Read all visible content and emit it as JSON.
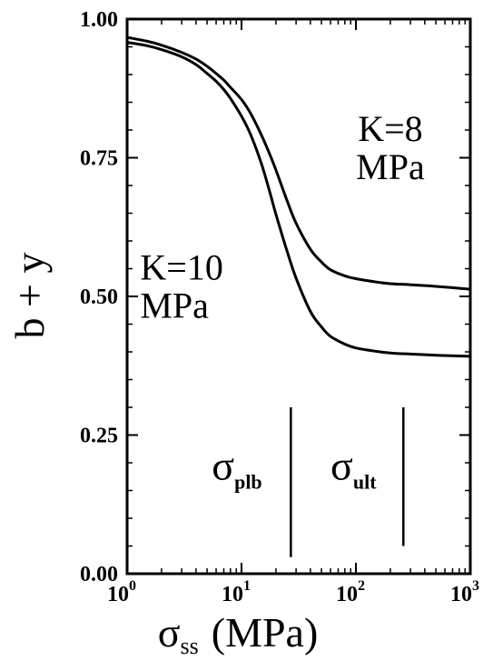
{
  "chart_data": {
    "type": "line",
    "title": "",
    "xlabel": {
      "main": "σ",
      "sub": "ss",
      "unit": "(MPa)"
    },
    "ylabel": "b + y",
    "xscale": "log",
    "xlim": [
      1,
      1000
    ],
    "ylim": [
      0.0,
      1.0
    ],
    "grid": false,
    "legend": "none",
    "x_ticks": [
      {
        "base": "10",
        "exp": "0",
        "value": 1
      },
      {
        "base": "10",
        "exp": "1",
        "value": 10
      },
      {
        "base": "10",
        "exp": "2",
        "value": 100
      },
      {
        "base": "10",
        "exp": "3",
        "value": 1000
      }
    ],
    "y_ticks": [
      {
        "label": "0.00",
        "value": 0.0
      },
      {
        "label": "0.25",
        "value": 0.25
      },
      {
        "label": "0.50",
        "value": 0.5
      },
      {
        "label": "0.75",
        "value": 0.75
      },
      {
        "label": "1.00",
        "value": 1.0
      }
    ],
    "series": [
      {
        "x": [
          1,
          1.5,
          2,
          3,
          4,
          5,
          6,
          7,
          8,
          10,
          12,
          15,
          18,
          20,
          25,
          30,
          40,
          50,
          60,
          80,
          100,
          150,
          200,
          300,
          500,
          1000
        ],
        "y": [
          0.967,
          0.96,
          0.953,
          0.94,
          0.928,
          0.915,
          0.902,
          0.89,
          0.877,
          0.855,
          0.83,
          0.79,
          0.752,
          0.728,
          0.673,
          0.632,
          0.585,
          0.562,
          0.548,
          0.537,
          0.532,
          0.526,
          0.523,
          0.521,
          0.518,
          0.513
        ]
      },
      {
        "x": [
          1,
          1.5,
          2,
          3,
          4,
          5,
          6,
          7,
          8,
          10,
          12,
          15,
          18,
          20,
          25,
          30,
          40,
          50,
          60,
          80,
          100,
          150,
          200,
          300,
          500,
          1000
        ],
        "y": [
          0.958,
          0.952,
          0.945,
          0.932,
          0.918,
          0.902,
          0.888,
          0.873,
          0.857,
          0.825,
          0.792,
          0.738,
          0.682,
          0.648,
          0.582,
          0.533,
          0.473,
          0.445,
          0.428,
          0.414,
          0.407,
          0.401,
          0.398,
          0.396,
          0.394,
          0.392
        ]
      }
    ],
    "annotations": [
      {
        "text": "K=8",
        "line2": "MPa",
        "x": 200,
        "y": 0.78
      },
      {
        "text": "K=10",
        "line2": "MPa",
        "x": 3,
        "y": 0.53
      }
    ],
    "markers": [
      {
        "x": 27,
        "y_range": [
          0.03,
          0.3
        ],
        "label_main": "σ",
        "label_sub": "plb",
        "label_x": 5.5
      },
      {
        "x": 260,
        "y_range": [
          0.05,
          0.3
        ],
        "label_main": "σ",
        "label_sub": "ult",
        "label_x": 60
      }
    ]
  }
}
